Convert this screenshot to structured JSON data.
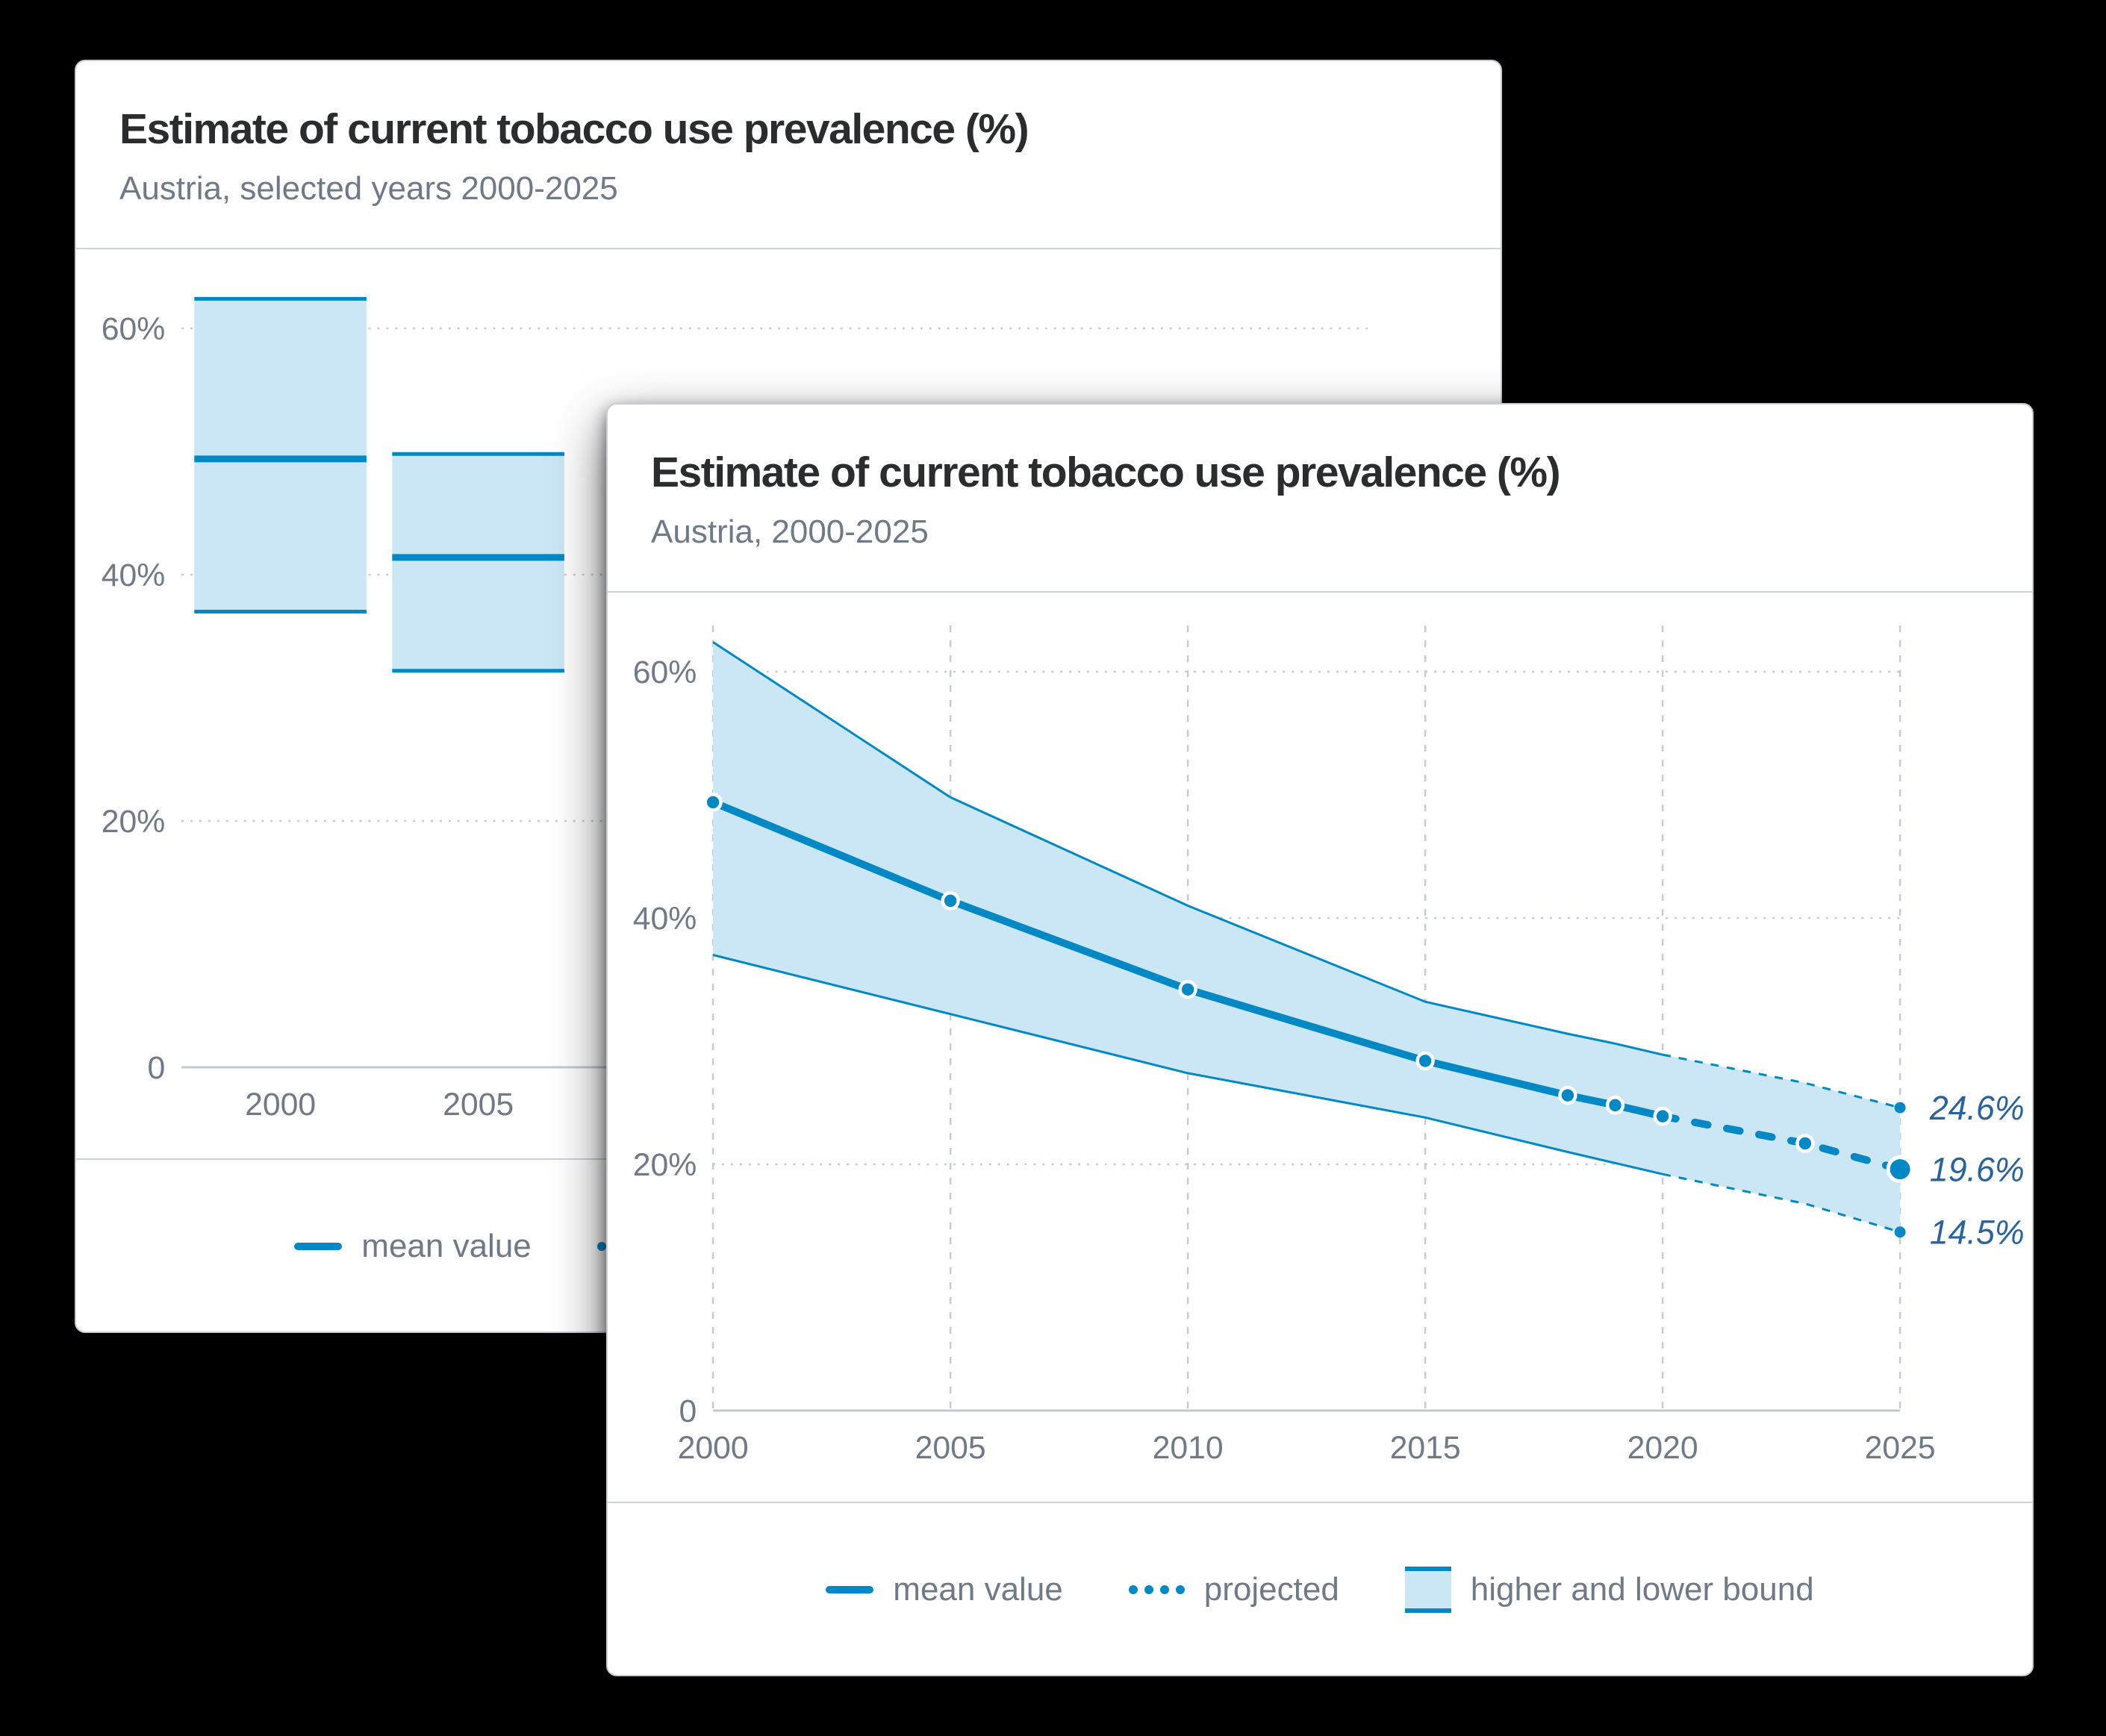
{
  "colors": {
    "page_bg": "#000000",
    "accent": "#0289c5",
    "band": "#cbe7f5",
    "grid": "#c5cbd4",
    "axis": "#c3c9d2",
    "text_muted": "#6f7987",
    "title": "#2b2c2e",
    "annotation": "#2a6399",
    "divider": "#ccd2da",
    "card_border": "#c8cdd5"
  },
  "legend": {
    "items": [
      {
        "id": "mean-value",
        "label": "mean value",
        "swatch": "solid-line"
      },
      {
        "id": "projected",
        "label": "projected",
        "swatch": "dotted-line"
      },
      {
        "id": "higher-and-lower-bound",
        "label": "higher and lower bound",
        "swatch": "band"
      }
    ]
  },
  "cards": [
    {
      "title": "Estimate of current tobacco use prevalence (%)",
      "subtitle": "Austria, selected years 2000-2025",
      "chart_data": {
        "type": "bar",
        "x_slots": 6,
        "xlabel": "",
        "ylabel": "",
        "ylim": [
          0,
          66
        ],
        "grid": "horizontal-dotted",
        "legend_position": "bottom",
        "y_ticks": [
          {
            "value": 60,
            "label": "60%"
          },
          {
            "value": 40,
            "label": "40%"
          },
          {
            "value": 20,
            "label": "20%"
          },
          {
            "value": 0,
            "label": "0"
          }
        ],
        "bars": [
          {
            "category": "2000",
            "upper": 62.4,
            "mean": 49.4,
            "lower": 37.0
          },
          {
            "category": "2005",
            "upper": 49.8,
            "mean": 41.4,
            "lower": 32.2
          }
        ]
      }
    },
    {
      "title": "Estimate of current tobacco use prevalence (%)",
      "subtitle": "Austria, 2000-2025",
      "chart_data": {
        "type": "line",
        "x": [
          2000,
          2005,
          2010,
          2015,
          2018,
          2019,
          2020,
          2023,
          2025
        ],
        "series": [
          {
            "name": "mean value",
            "values": [
              49.4,
              41.4,
              34.2,
              28.4,
              25.6,
              24.8,
              23.9,
              21.7,
              19.6
            ]
          },
          {
            "name": "higher bound",
            "values": [
              62.4,
              49.8,
              41.0,
              33.2,
              30.6,
              29.8,
              28.9,
              26.6,
              24.6
            ]
          },
          {
            "name": "lower bound",
            "values": [
              37.0,
              32.2,
              27.4,
              23.8,
              21.0,
              20.1,
              19.2,
              16.8,
              14.5
            ]
          }
        ],
        "projected_from_year": 2020,
        "xlim": [
          2000,
          2025
        ],
        "ylim": [
          0,
          66
        ],
        "grid": true,
        "legend_position": "bottom",
        "x_ticks": [
          {
            "value": 2000,
            "label": "2000"
          },
          {
            "value": 2005,
            "label": "2005"
          },
          {
            "value": 2010,
            "label": "2010"
          },
          {
            "value": 2015,
            "label": "2015"
          },
          {
            "value": 2020,
            "label": "2020"
          },
          {
            "value": 2025,
            "label": "2025"
          }
        ],
        "y_ticks": [
          {
            "value": 60,
            "label": "60%"
          },
          {
            "value": 40,
            "label": "40%"
          },
          {
            "value": 20,
            "label": "20%"
          },
          {
            "value": 0,
            "label": "0"
          }
        ],
        "annotations": [
          {
            "label": "24.6%",
            "value": 24.6,
            "series": "higher bound"
          },
          {
            "label": "19.6%",
            "value": 19.6,
            "series": "mean value"
          },
          {
            "label": "14.5%",
            "value": 14.5,
            "series": "lower bound"
          }
        ]
      }
    }
  ]
}
